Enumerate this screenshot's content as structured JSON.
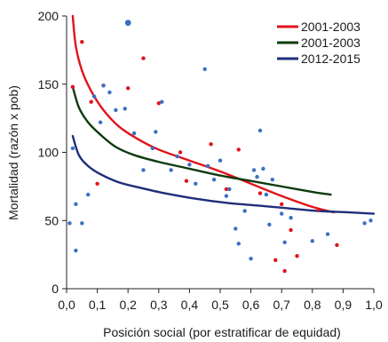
{
  "chart_data": {
    "type": "scatter",
    "title": "",
    "xlabel": "Posición social (por estratificar de equidad)",
    "ylabel": "Mortalidad (razón x pob)",
    "xlim": [
      0,
      1
    ],
    "ylim": [
      0,
      200
    ],
    "x_ticks": [
      "0,0",
      "0,1",
      "0,2",
      "0,3",
      "0,4",
      "0,5",
      "0,6",
      "0,7",
      "0,8",
      "0,9",
      "1,0"
    ],
    "y_ticks": [
      "0",
      "50",
      "100",
      "150",
      "200"
    ],
    "grid": false,
    "legend_position": "top-right",
    "series": [
      {
        "name": "2001-2003",
        "color": "#e0131b",
        "curve": [
          [
            0.02,
            200
          ],
          [
            0.03,
            178
          ],
          [
            0.05,
            160
          ],
          [
            0.08,
            145
          ],
          [
            0.12,
            131
          ],
          [
            0.17,
            119
          ],
          [
            0.23,
            110
          ],
          [
            0.3,
            102
          ],
          [
            0.4,
            94
          ],
          [
            0.5,
            86
          ],
          [
            0.6,
            77
          ],
          [
            0.7,
            68
          ],
          [
            0.8,
            60
          ],
          [
            0.87,
            56
          ]
        ],
        "points": [
          [
            0.02,
            148
          ],
          [
            0.05,
            181
          ],
          [
            0.08,
            137
          ],
          [
            0.1,
            77
          ],
          [
            0.12,
            149
          ],
          [
            0.2,
            147
          ],
          [
            0.25,
            169
          ],
          [
            0.3,
            136
          ],
          [
            0.37,
            100
          ],
          [
            0.39,
            79
          ],
          [
            0.47,
            106
          ],
          [
            0.52,
            73
          ],
          [
            0.56,
            102
          ],
          [
            0.63,
            70
          ],
          [
            0.68,
            21
          ],
          [
            0.7,
            62
          ],
          [
            0.71,
            13
          ],
          [
            0.73,
            43
          ],
          [
            0.75,
            24
          ],
          [
            0.82,
            58
          ],
          [
            0.88,
            32
          ]
        ]
      },
      {
        "name": "2001-2003",
        "color": "#0d3b0d",
        "curve": [
          [
            0.02,
            148
          ],
          [
            0.04,
            133
          ],
          [
            0.07,
            122
          ],
          [
            0.11,
            113
          ],
          [
            0.16,
            104
          ],
          [
            0.22,
            98
          ],
          [
            0.3,
            93
          ],
          [
            0.4,
            88
          ],
          [
            0.5,
            83
          ],
          [
            0.6,
            79
          ],
          [
            0.7,
            75
          ],
          [
            0.8,
            71
          ],
          [
            0.86,
            69
          ]
        ],
        "points": []
      },
      {
        "name": "2012-2015",
        "color": "#1f2d7b",
        "curve": [
          [
            0.02,
            112
          ],
          [
            0.04,
            98
          ],
          [
            0.07,
            90
          ],
          [
            0.11,
            84
          ],
          [
            0.17,
            78
          ],
          [
            0.24,
            74
          ],
          [
            0.32,
            70
          ],
          [
            0.42,
            66
          ],
          [
            0.52,
            63
          ],
          [
            0.62,
            61
          ],
          [
            0.72,
            59
          ],
          [
            0.82,
            57
          ],
          [
            0.92,
            56
          ],
          [
            1.0,
            55
          ]
        ],
        "points": [
          [
            0.01,
            48
          ],
          [
            0.02,
            103
          ],
          [
            0.03,
            28
          ],
          [
            0.03,
            62
          ],
          [
            0.05,
            48
          ],
          [
            0.07,
            69
          ],
          [
            0.09,
            141
          ],
          [
            0.11,
            122
          ],
          [
            0.12,
            149
          ],
          [
            0.14,
            144
          ],
          [
            0.16,
            131
          ],
          [
            0.19,
            132
          ],
          [
            0.2,
            195
          ],
          [
            0.22,
            114
          ],
          [
            0.25,
            87
          ],
          [
            0.28,
            103
          ],
          [
            0.29,
            115
          ],
          [
            0.31,
            137
          ],
          [
            0.34,
            87
          ],
          [
            0.36,
            97
          ],
          [
            0.4,
            91
          ],
          [
            0.42,
            77
          ],
          [
            0.45,
            161
          ],
          [
            0.46,
            90
          ],
          [
            0.48,
            80
          ],
          [
            0.5,
            94
          ],
          [
            0.52,
            68
          ],
          [
            0.53,
            73
          ],
          [
            0.55,
            44
          ],
          [
            0.56,
            33
          ],
          [
            0.58,
            57
          ],
          [
            0.6,
            22
          ],
          [
            0.61,
            87
          ],
          [
            0.62,
            82
          ],
          [
            0.63,
            116
          ],
          [
            0.64,
            88
          ],
          [
            0.65,
            69
          ],
          [
            0.66,
            47
          ],
          [
            0.67,
            80
          ],
          [
            0.7,
            55
          ],
          [
            0.71,
            34
          ],
          [
            0.73,
            52
          ],
          [
            0.8,
            35
          ],
          [
            0.85,
            40
          ],
          [
            0.97,
            48
          ],
          [
            0.99,
            50
          ]
        ]
      }
    ]
  }
}
